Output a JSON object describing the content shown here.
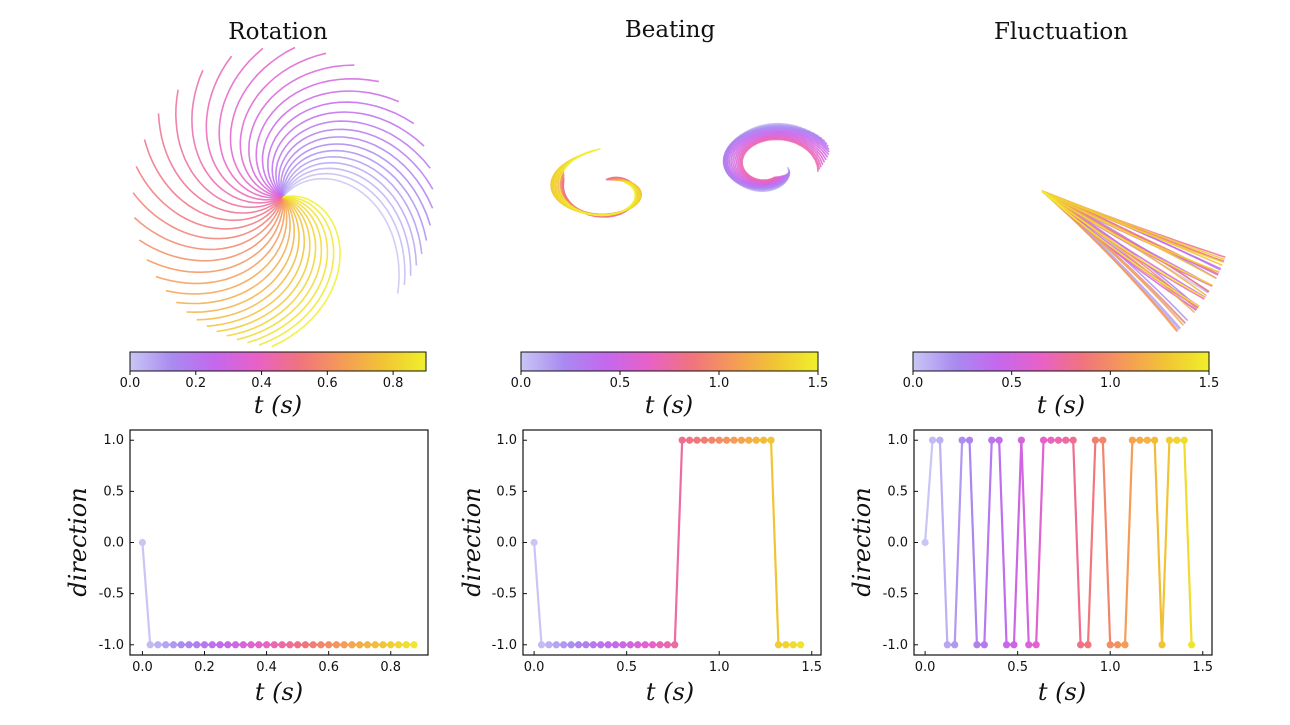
{
  "chart_data": [
    {
      "type": "line",
      "title": "Rotation",
      "xlabel": "t (s)",
      "ylabel": "direction",
      "xlim": [
        -0.04,
        0.92
      ],
      "ylim": [
        -1.1,
        1.1
      ],
      "xticks": [
        "0.0",
        "0.2",
        "0.4",
        "0.6",
        "0.8"
      ],
      "yticks": [
        "1.0",
        "0.5",
        "0.0",
        "-0.5",
        "-1.0"
      ],
      "colorbar": {
        "label": "t (s)",
        "range": [
          0,
          0.9
        ],
        "ticks": [
          "0.0",
          "0.2",
          "0.4",
          "0.6",
          "0.8"
        ]
      },
      "series": [
        {
          "x": [
            0.0,
            0.025,
            0.05,
            0.075,
            0.1,
            0.125,
            0.15,
            0.175,
            0.2,
            0.225,
            0.25,
            0.275,
            0.3,
            0.325,
            0.35,
            0.375,
            0.4,
            0.425,
            0.45,
            0.475,
            0.5,
            0.525,
            0.55,
            0.575,
            0.6,
            0.625,
            0.65,
            0.675,
            0.7,
            0.725,
            0.75,
            0.775,
            0.8,
            0.825,
            0.85,
            0.875
          ],
          "y": [
            0,
            -1,
            -1,
            -1,
            -1,
            -1,
            -1,
            -1,
            -1,
            -1,
            -1,
            -1,
            -1,
            -1,
            -1,
            -1,
            -1,
            -1,
            -1,
            -1,
            -1,
            -1,
            -1,
            -1,
            -1,
            -1,
            -1,
            -1,
            -1,
            -1,
            -1,
            -1,
            -1,
            -1,
            -1,
            -1
          ]
        }
      ]
    },
    {
      "type": "line",
      "title": "Beating",
      "xlabel": "t (s)",
      "ylabel": "direction",
      "xlim": [
        -0.06,
        1.55
      ],
      "ylim": [
        -1.1,
        1.1
      ],
      "xticks": [
        "0.0",
        "0.5",
        "1.0",
        "1.5"
      ],
      "yticks": [
        "1.0",
        "0.5",
        "0.0",
        "-0.5",
        "-1.0"
      ],
      "colorbar": {
        "label": "t (s)",
        "range": [
          0,
          1.5
        ],
        "ticks": [
          "0.0",
          "0.5",
          "1.0",
          "1.5"
        ]
      },
      "series": [
        {
          "x": [
            0.0,
            0.04,
            0.08,
            0.12,
            0.16,
            0.2,
            0.24,
            0.28,
            0.32,
            0.36,
            0.4,
            0.44,
            0.48,
            0.52,
            0.56,
            0.6,
            0.64,
            0.68,
            0.72,
            0.76,
            0.8,
            0.84,
            0.88,
            0.92,
            0.96,
            1.0,
            1.04,
            1.08,
            1.12,
            1.16,
            1.2,
            1.24,
            1.28,
            1.32,
            1.36,
            1.4,
            1.44
          ],
          "y": [
            0,
            -1,
            -1,
            -1,
            -1,
            -1,
            -1,
            -1,
            -1,
            -1,
            -1,
            -1,
            -1,
            -1,
            -1,
            -1,
            -1,
            -1,
            -1,
            -1,
            1,
            1,
            1,
            1,
            1,
            1,
            1,
            1,
            1,
            1,
            1,
            1,
            1,
            -1,
            -1,
            -1,
            -1
          ]
        }
      ]
    },
    {
      "type": "line",
      "title": "Fluctuation",
      "xlabel": "t (s)",
      "ylabel": "direction",
      "xlim": [
        -0.06,
        1.55
      ],
      "ylim": [
        -1.1,
        1.1
      ],
      "xticks": [
        "0.0",
        "0.5",
        "1.0",
        "1.5"
      ],
      "yticks": [
        "1.0",
        "0.5",
        "0.0",
        "-0.5",
        "-1.0"
      ],
      "colorbar": {
        "label": "t (s)",
        "range": [
          0,
          1.5
        ],
        "ticks": [
          "0.0",
          "0.5",
          "1.0",
          "1.5"
        ]
      },
      "series": [
        {
          "x": [
            0.0,
            0.04,
            0.08,
            0.12,
            0.16,
            0.2,
            0.24,
            0.28,
            0.32,
            0.36,
            0.4,
            0.44,
            0.48,
            0.52,
            0.56,
            0.6,
            0.64,
            0.68,
            0.72,
            0.76,
            0.8,
            0.84,
            0.88,
            0.92,
            0.96,
            1.0,
            1.04,
            1.08,
            1.12,
            1.16,
            1.2,
            1.24,
            1.28,
            1.32,
            1.36,
            1.4,
            1.44
          ],
          "y": [
            0,
            1,
            1,
            -1,
            -1,
            1,
            1,
            -1,
            -1,
            1,
            1,
            -1,
            -1,
            1,
            -1,
            -1,
            1,
            1,
            1,
            1,
            1,
            -1,
            -1,
            1,
            1,
            -1,
            -1,
            -1,
            1,
            1,
            1,
            1,
            -1,
            1,
            1,
            1,
            -1
          ]
        }
      ]
    }
  ],
  "colormap": [
    "#c9c6f5",
    "#a98af0",
    "#c468ee",
    "#e861c8",
    "#f0737f",
    "#f59a57",
    "#f1c534",
    "#f0f02a"
  ]
}
